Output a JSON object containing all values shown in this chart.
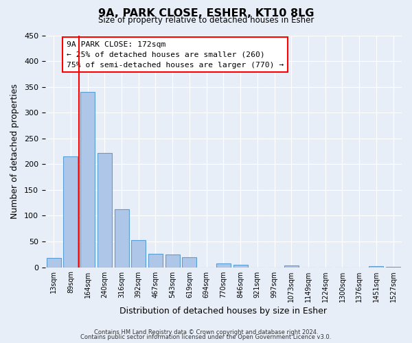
{
  "title": "9A, PARK CLOSE, ESHER, KT10 8LG",
  "subtitle": "Size of property relative to detached houses in Esher",
  "xlabel": "Distribution of detached houses by size in Esher",
  "ylabel": "Number of detached properties",
  "bar_color": "#aec6e8",
  "bar_edge_color": "#5a9fd4",
  "background_color": "#e8eef8",
  "grid_color": "#ffffff",
  "categories": [
    "13sqm",
    "89sqm",
    "164sqm",
    "240sqm",
    "316sqm",
    "392sqm",
    "467sqm",
    "543sqm",
    "619sqm",
    "694sqm",
    "770sqm",
    "846sqm",
    "921sqm",
    "997sqm",
    "1073sqm",
    "1149sqm",
    "1224sqm",
    "1300sqm",
    "1376sqm",
    "1451sqm",
    "1527sqm"
  ],
  "values": [
    18,
    215,
    340,
    222,
    113,
    53,
    26,
    25,
    20,
    0,
    8,
    5,
    0,
    0,
    3,
    0,
    0,
    0,
    0,
    2,
    1
  ],
  "ylim": [
    0,
    450
  ],
  "yticks": [
    0,
    50,
    100,
    150,
    200,
    250,
    300,
    350,
    400,
    450
  ],
  "red_line_x": 1.5,
  "annotation_box_text": "9A PARK CLOSE: 172sqm\n← 25% of detached houses are smaller (260)\n75% of semi-detached houses are larger (770) →",
  "footer_line1": "Contains HM Land Registry data © Crown copyright and database right 2024.",
  "footer_line2": "Contains public sector information licensed under the Open Government Licence v3.0."
}
